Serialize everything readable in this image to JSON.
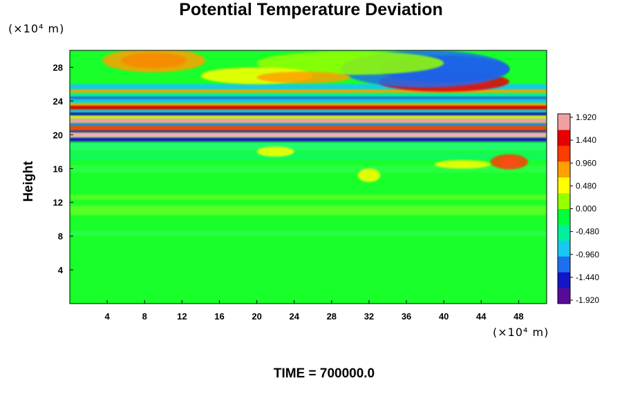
{
  "chart_data": {
    "type": "heatmap",
    "title": "Potential Temperature Deviation",
    "ylabel": "Height",
    "x_unit": "(×10⁴ m)",
    "y_unit": "(×10⁴ m)",
    "x_ticks": [
      4,
      8,
      12,
      16,
      20,
      24,
      28,
      32,
      36,
      40,
      44,
      48
    ],
    "y_ticks": [
      4,
      8,
      12,
      16,
      20,
      24,
      28
    ],
    "xlim": [
      0,
      51
    ],
    "ylim": [
      0,
      30
    ],
    "colorbar": {
      "ticks": [
        "1.920",
        "1.440",
        "0.960",
        "0.480",
        "0.000",
        "-0.480",
        "-0.960",
        "-1.440",
        "-1.920"
      ],
      "range": [
        -1.92,
        1.92
      ],
      "colors": [
        "#5a0a9a",
        "#1414c8",
        "#1e6ef0",
        "#19c8f0",
        "#00f0a0",
        "#00ff3c",
        "#96ff00",
        "#ffff00",
        "#ffa000",
        "#ff3c00",
        "#e60000",
        "#f0a0a0"
      ]
    },
    "field_description": "Strong alternating positive/negative bands between heights 19 and 26; near-zero field below 18; mixed wave patterns above 24.",
    "time_label": "TIME = 700000.0"
  }
}
